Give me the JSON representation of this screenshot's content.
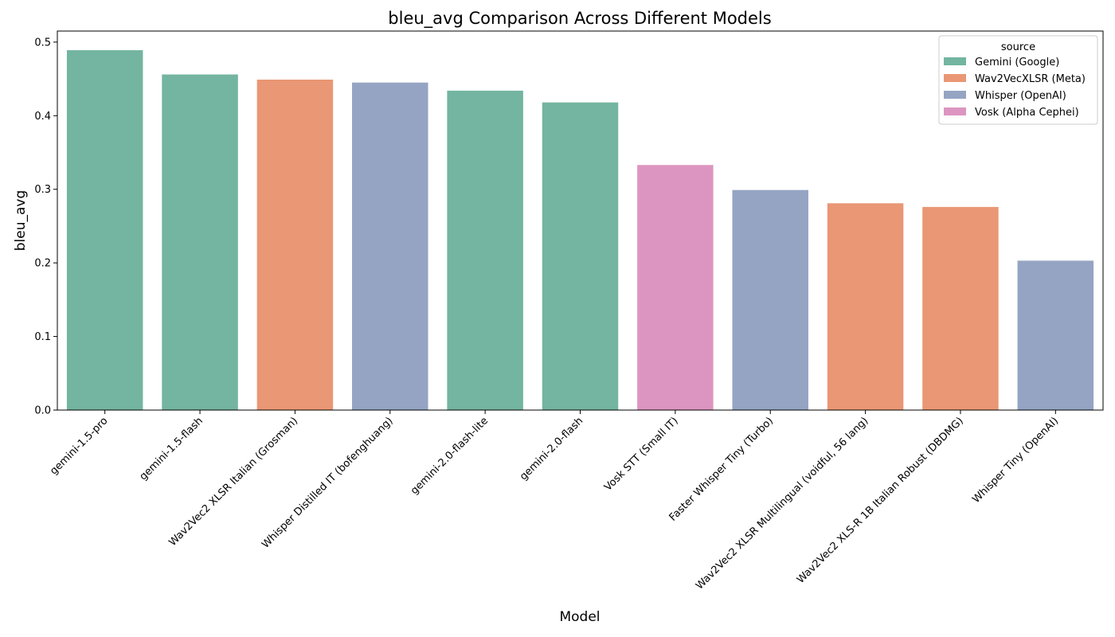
{
  "chart_data": {
    "type": "bar",
    "title": "bleu_avg Comparison Across Different Models",
    "xlabel": "Model",
    "ylabel": "bleu_avg",
    "ylim": [
      0,
      0.515
    ],
    "yticks": [
      0.0,
      0.1,
      0.2,
      0.3,
      0.4,
      0.5
    ],
    "ytick_labels": [
      "0.0",
      "0.1",
      "0.2",
      "0.3",
      "0.4",
      "0.5"
    ],
    "grid": false,
    "legend": {
      "title": "source",
      "placement": "top-right",
      "entries": [
        {
          "name": "Gemini (Google)",
          "color": "#73b5a0"
        },
        {
          "name": "Wav2VecXLSR (Meta)",
          "color": "#e99774"
        },
        {
          "name": "Whisper (OpenAI)",
          "color": "#95a4c3"
        },
        {
          "name": "Vosk (Alpha Cephei)",
          "color": "#dc95c0"
        }
      ]
    },
    "categories": [
      "gemini-1.5-pro",
      "gemini-1.5-flash",
      "Wav2Vec2 XLSR Italian (Grosman)",
      "Whisper Distilled IT (bofenghuang)",
      "gemini-2.0-flash-lite",
      "gemini-2.0-flash",
      "Vosk STT (Small IT)",
      "Faster Whisper Tiny (Turbo)",
      "Wav2Vec2 XLSR Multilingual (voidful, 56 lang)",
      "Wav2Vec2 XLS-R 1B Italian Robust (DBDMG)",
      "Whisper Tiny (OpenAI)"
    ],
    "values": [
      0.489,
      0.456,
      0.449,
      0.445,
      0.434,
      0.418,
      0.333,
      0.299,
      0.281,
      0.276,
      0.203
    ],
    "sources": [
      "Gemini (Google)",
      "Gemini (Google)",
      "Wav2VecXLSR (Meta)",
      "Whisper (OpenAI)",
      "Gemini (Google)",
      "Gemini (Google)",
      "Vosk (Alpha Cephei)",
      "Whisper (OpenAI)",
      "Wav2VecXLSR (Meta)",
      "Wav2VecXLSR (Meta)",
      "Whisper (OpenAI)"
    ]
  }
}
